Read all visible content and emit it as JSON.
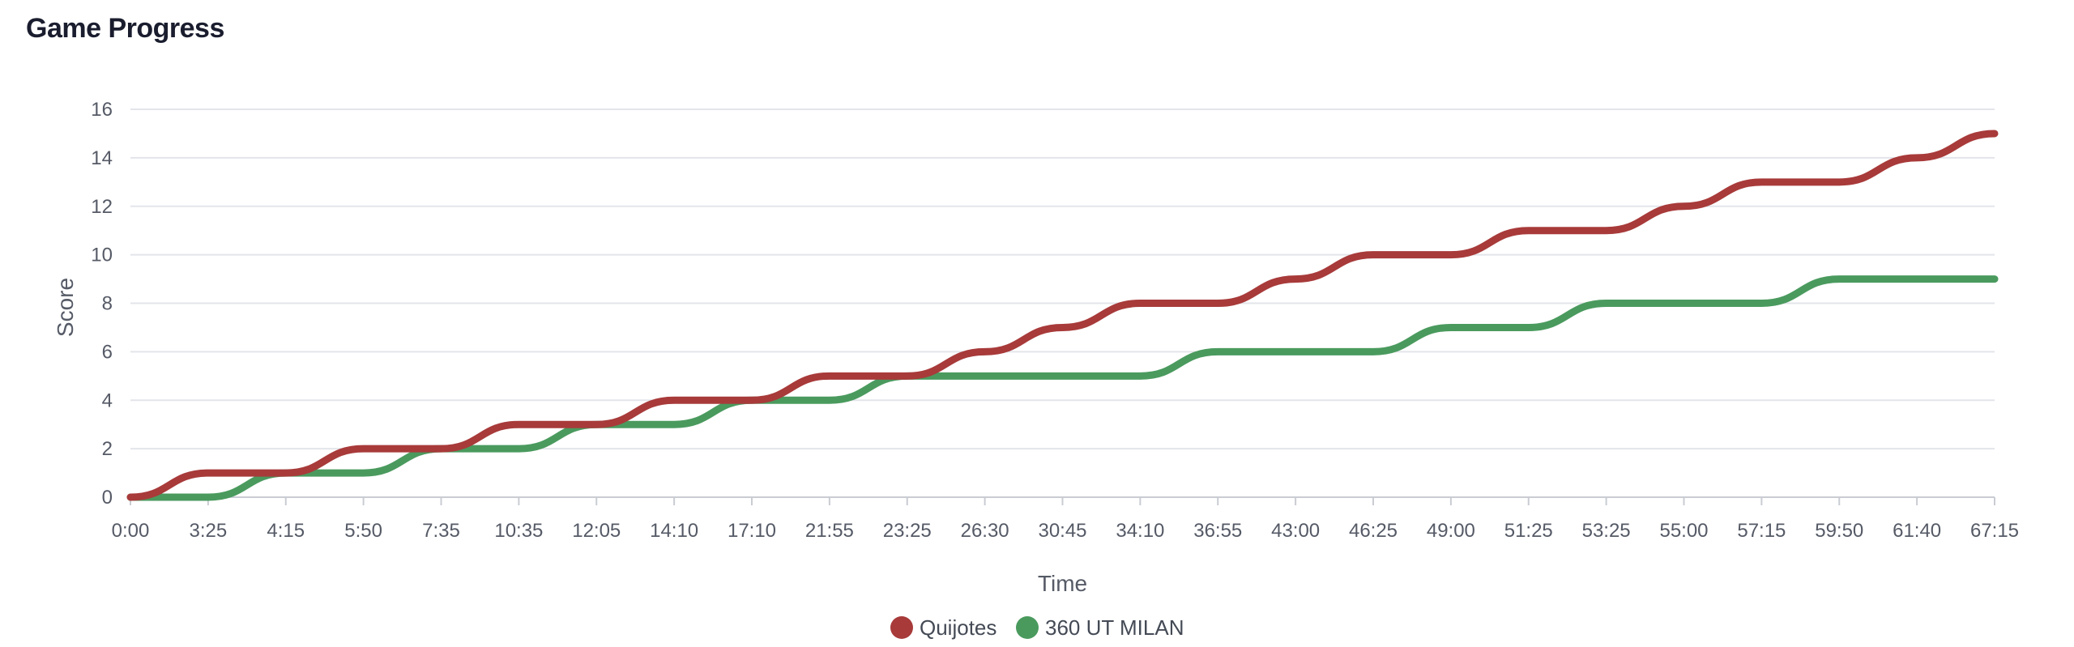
{
  "title": "Game Progress",
  "chart_data": {
    "type": "line",
    "title": "Game Progress",
    "xlabel": "Time",
    "ylabel": "Score",
    "ylim": [
      0,
      16
    ],
    "yticks": [
      0,
      2,
      4,
      6,
      8,
      10,
      12,
      14,
      16
    ],
    "grid": true,
    "legend_position": "bottom-center",
    "categories": [
      "0:00",
      "3:25",
      "4:15",
      "5:50",
      "7:35",
      "10:35",
      "12:05",
      "14:10",
      "17:10",
      "21:55",
      "23:25",
      "26:30",
      "30:45",
      "34:10",
      "36:55",
      "43:00",
      "46:25",
      "49:00",
      "51:25",
      "53:25",
      "55:00",
      "57:15",
      "59:50",
      "61:40",
      "67:15"
    ],
    "series": [
      {
        "name": "Quijotes",
        "color": "#a83a3a",
        "values": [
          0,
          1,
          1,
          2,
          2,
          3,
          3,
          4,
          4,
          5,
          5,
          6,
          7,
          8,
          8,
          9,
          10,
          10,
          11,
          11,
          12,
          13,
          13,
          14,
          15
        ]
      },
      {
        "name": "360 UT MILAN",
        "color": "#4a9a5e",
        "values": [
          0,
          0,
          1,
          1,
          2,
          2,
          3,
          3,
          4,
          4,
          5,
          5,
          5,
          5,
          6,
          6,
          6,
          7,
          7,
          8,
          8,
          8,
          9,
          9,
          9
        ]
      }
    ]
  }
}
